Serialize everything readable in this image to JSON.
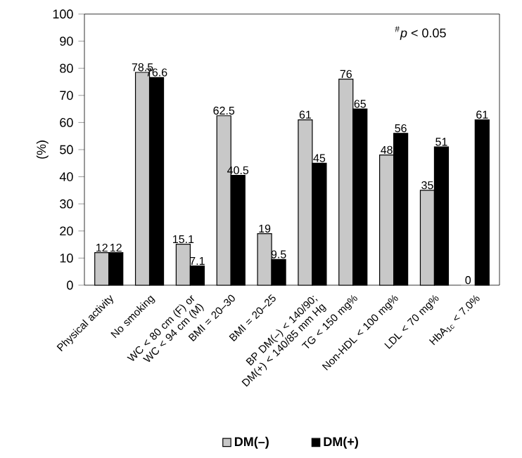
{
  "chart_data": {
    "type": "bar",
    "ylabel": "(%)",
    "categories": [
      "Physical activity",
      "No smoking",
      "WC < 80 cm (F) or WC < 94 cm (M)",
      "BMI = 20–30",
      "BMI = 20–25",
      "BP DM(–) < 140/90; DM(+) < 140/85 mm Hg",
      "TG < 150 mg%",
      "Non-HDL < 100 mg%",
      "LDL < 70 mg%",
      "HbA$_{1c}$ < 7.0%"
    ],
    "series": [
      {
        "name": "DM(–)",
        "color": "#c8c8c8",
        "values": [
          12,
          78.5,
          15.1,
          62.5,
          19,
          61,
          76,
          48,
          35,
          0
        ]
      },
      {
        "name": "DM(+)",
        "color": "#000000",
        "values": [
          12,
          76.6,
          7.1,
          40.5,
          9.5,
          45,
          65,
          56,
          51,
          61
        ]
      }
    ],
    "ylim": [
      0,
      100
    ],
    "yticks": [
      0,
      10,
      20,
      30,
      40,
      50,
      60,
      70,
      80,
      90,
      100
    ],
    "annotations": [
      "$^{#}$*p* < 0.05"
    ],
    "data_labels": true,
    "grid": false,
    "legend": "bottom"
  }
}
